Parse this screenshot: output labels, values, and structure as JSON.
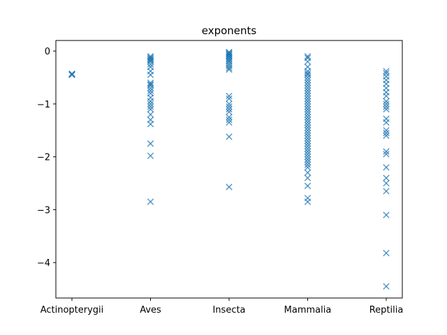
{
  "chart_data": {
    "type": "scatter",
    "title": "exponents",
    "xlabel": "",
    "ylabel": "",
    "categories": [
      "Actinopterygii",
      "Aves",
      "Insecta",
      "Mammalia",
      "Reptilia"
    ],
    "yticks": [
      "−4",
      "−3",
      "−2",
      "−1",
      "0"
    ],
    "ytick_values": [
      -4,
      -3,
      -2,
      -1,
      0
    ],
    "ylim": [
      -4.67,
      0.2
    ],
    "grid": false,
    "legend": "none",
    "marker": "x",
    "color": "#1f77b4",
    "points": [
      {
        "category": "Actinopterygii",
        "values": [
          -0.44,
          -0.44,
          -0.45,
          -0.43
        ]
      },
      {
        "category": "Aves",
        "values": [
          -0.1,
          -0.12,
          -0.14,
          -0.16,
          -0.18,
          -0.2,
          -0.25,
          -0.3,
          -0.38,
          -0.45,
          -0.6,
          -0.63,
          -0.65,
          -0.7,
          -0.75,
          -0.8,
          -0.88,
          -0.95,
          -1.0,
          -1.05,
          -1.1,
          -1.2,
          -1.3,
          -1.38,
          -1.75,
          -1.98,
          -2.85
        ]
      },
      {
        "category": "Insecta",
        "values": [
          -0.02,
          -0.03,
          -0.05,
          -0.06,
          -0.08,
          -0.1,
          -0.12,
          -0.15,
          -0.18,
          -0.2,
          -0.24,
          -0.28,
          -0.32,
          -0.35,
          -0.85,
          -0.9,
          -1.0,
          -1.05,
          -1.1,
          -1.15,
          -1.25,
          -1.3,
          -1.35,
          -1.62,
          -2.57
        ]
      },
      {
        "category": "Mammalia",
        "values": [
          -0.1,
          -0.13,
          -0.2,
          -0.3,
          -0.38,
          -0.42,
          -0.45,
          -0.5,
          -0.55,
          -0.6,
          -0.65,
          -0.7,
          -0.75,
          -0.8,
          -0.85,
          -0.9,
          -0.95,
          -1.0,
          -1.05,
          -1.1,
          -1.15,
          -1.2,
          -1.25,
          -1.3,
          -1.35,
          -1.4,
          -1.45,
          -1.5,
          -1.55,
          -1.6,
          -1.65,
          -1.7,
          -1.75,
          -1.8,
          -1.85,
          -1.9,
          -1.95,
          -2.0,
          -2.05,
          -2.1,
          -2.15,
          -2.2,
          -2.3,
          -2.4,
          -2.55,
          -2.78,
          -2.85
        ]
      },
      {
        "category": "Reptilia",
        "values": [
          -0.38,
          -0.42,
          -0.48,
          -0.55,
          -0.62,
          -0.7,
          -0.78,
          -0.85,
          -0.95,
          -1.0,
          -1.05,
          -1.1,
          -1.28,
          -1.35,
          -1.5,
          -1.55,
          -1.6,
          -1.9,
          -1.95,
          -2.2,
          -2.4,
          -2.5,
          -2.65,
          -3.1,
          -3.82,
          -4.45
        ]
      }
    ]
  }
}
